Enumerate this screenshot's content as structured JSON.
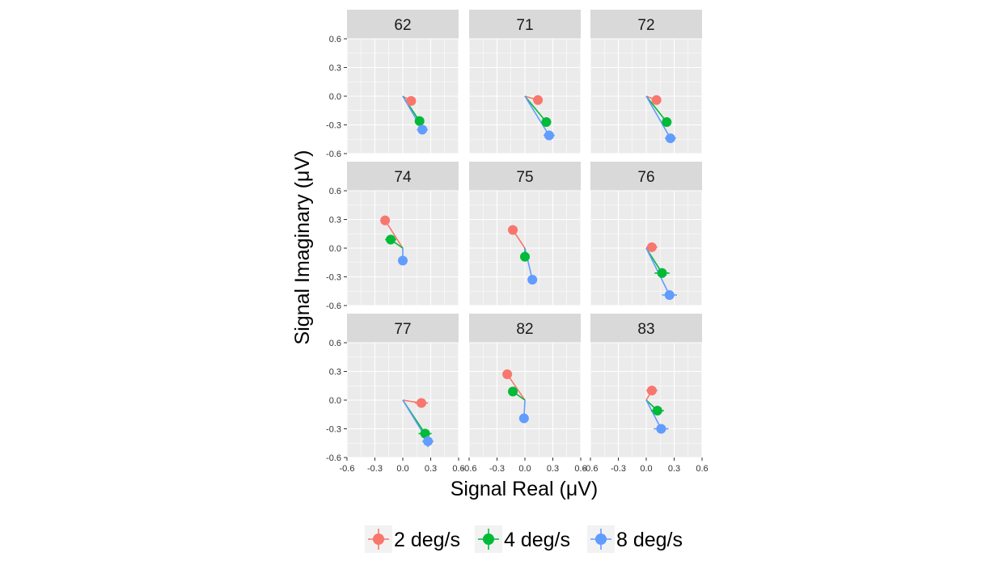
{
  "chart_data": {
    "type": "scatter",
    "xlabel": "Signal Real (μV)",
    "ylabel": "Signal Imaginary (μV)",
    "xlim": [
      -0.6,
      0.6
    ],
    "ylim": [
      -0.6,
      0.6
    ],
    "x_ticks": [
      "-0.6",
      "-0.3",
      "0.0",
      "0.3",
      "0.6"
    ],
    "y_ticks": [
      "0.6",
      "0.3",
      "0.0",
      "-0.3",
      "-0.6"
    ],
    "grid": true,
    "legend_position": "bottom",
    "series_styles": [
      {
        "name": "2 deg/s",
        "color": "#F8766D"
      },
      {
        "name": "4 deg/s",
        "color": "#00BA38"
      },
      {
        "name": "8 deg/s",
        "color": "#619CFF"
      }
    ],
    "panels": [
      {
        "label": "62",
        "points": [
          {
            "series": "2 deg/s",
            "x": 0.09,
            "y": -0.05,
            "err_x": 0.05,
            "err_y": 0.04
          },
          {
            "series": "4 deg/s",
            "x": 0.18,
            "y": -0.26,
            "err_x": 0.05,
            "err_y": 0.04
          },
          {
            "series": "8 deg/s",
            "x": 0.21,
            "y": -0.35,
            "err_x": 0.06,
            "err_y": 0.04
          }
        ]
      },
      {
        "label": "71",
        "points": [
          {
            "series": "2 deg/s",
            "x": 0.14,
            "y": -0.04,
            "err_x": 0.05,
            "err_y": 0.05
          },
          {
            "series": "4 deg/s",
            "x": 0.23,
            "y": -0.27,
            "err_x": 0.05,
            "err_y": 0.04
          },
          {
            "series": "8 deg/s",
            "x": 0.26,
            "y": -0.41,
            "err_x": 0.06,
            "err_y": 0.04
          }
        ]
      },
      {
        "label": "72",
        "points": [
          {
            "series": "2 deg/s",
            "x": 0.11,
            "y": -0.04,
            "err_x": 0.05,
            "err_y": 0.04
          },
          {
            "series": "4 deg/s",
            "x": 0.22,
            "y": -0.27,
            "err_x": 0.05,
            "err_y": 0.04
          },
          {
            "series": "8 deg/s",
            "x": 0.26,
            "y": -0.44,
            "err_x": 0.06,
            "err_y": 0.04
          }
        ]
      },
      {
        "label": "74",
        "points": [
          {
            "series": "2 deg/s",
            "x": -0.19,
            "y": 0.29,
            "err_x": 0.05,
            "err_y": 0.05
          },
          {
            "series": "4 deg/s",
            "x": -0.13,
            "y": 0.09,
            "err_x": 0.06,
            "err_y": 0.05
          },
          {
            "series": "8 deg/s",
            "x": 0.0,
            "y": -0.13,
            "err_x": 0.03,
            "err_y": 0.03
          }
        ]
      },
      {
        "label": "75",
        "points": [
          {
            "series": "2 deg/s",
            "x": -0.13,
            "y": 0.19,
            "err_x": 0.05,
            "err_y": 0.04
          },
          {
            "series": "4 deg/s",
            "x": 0.0,
            "y": -0.09,
            "err_x": 0.05,
            "err_y": 0.04
          },
          {
            "series": "8 deg/s",
            "x": 0.08,
            "y": -0.33,
            "err_x": 0.05,
            "err_y": 0.04
          }
        ]
      },
      {
        "label": "76",
        "points": [
          {
            "series": "2 deg/s",
            "x": 0.06,
            "y": 0.01,
            "err_x": 0.06,
            "err_y": 0.05
          },
          {
            "series": "4 deg/s",
            "x": 0.17,
            "y": -0.26,
            "err_x": 0.08,
            "err_y": 0.05
          },
          {
            "series": "8 deg/s",
            "x": 0.25,
            "y": -0.49,
            "err_x": 0.08,
            "err_y": 0.04
          }
        ]
      },
      {
        "label": "77",
        "points": [
          {
            "series": "2 deg/s",
            "x": 0.2,
            "y": -0.03,
            "err_x": 0.07,
            "err_y": 0.05
          },
          {
            "series": "4 deg/s",
            "x": 0.24,
            "y": -0.35,
            "err_x": 0.07,
            "err_y": 0.05
          },
          {
            "series": "8 deg/s",
            "x": 0.27,
            "y": -0.43,
            "err_x": 0.06,
            "err_y": 0.06
          }
        ]
      },
      {
        "label": "82",
        "points": [
          {
            "series": "2 deg/s",
            "x": -0.19,
            "y": 0.27,
            "err_x": 0.05,
            "err_y": 0.05
          },
          {
            "series": "4 deg/s",
            "x": -0.13,
            "y": 0.09,
            "err_x": 0.05,
            "err_y": 0.04
          },
          {
            "series": "8 deg/s",
            "x": -0.01,
            "y": -0.19,
            "err_x": 0.05,
            "err_y": 0.03
          }
        ]
      },
      {
        "label": "83",
        "points": [
          {
            "series": "2 deg/s",
            "x": 0.06,
            "y": 0.1,
            "err_x": 0.06,
            "err_y": 0.05
          },
          {
            "series": "4 deg/s",
            "x": 0.12,
            "y": -0.11,
            "err_x": 0.07,
            "err_y": 0.05
          },
          {
            "series": "8 deg/s",
            "x": 0.16,
            "y": -0.3,
            "err_x": 0.08,
            "err_y": 0.04
          }
        ]
      }
    ]
  }
}
